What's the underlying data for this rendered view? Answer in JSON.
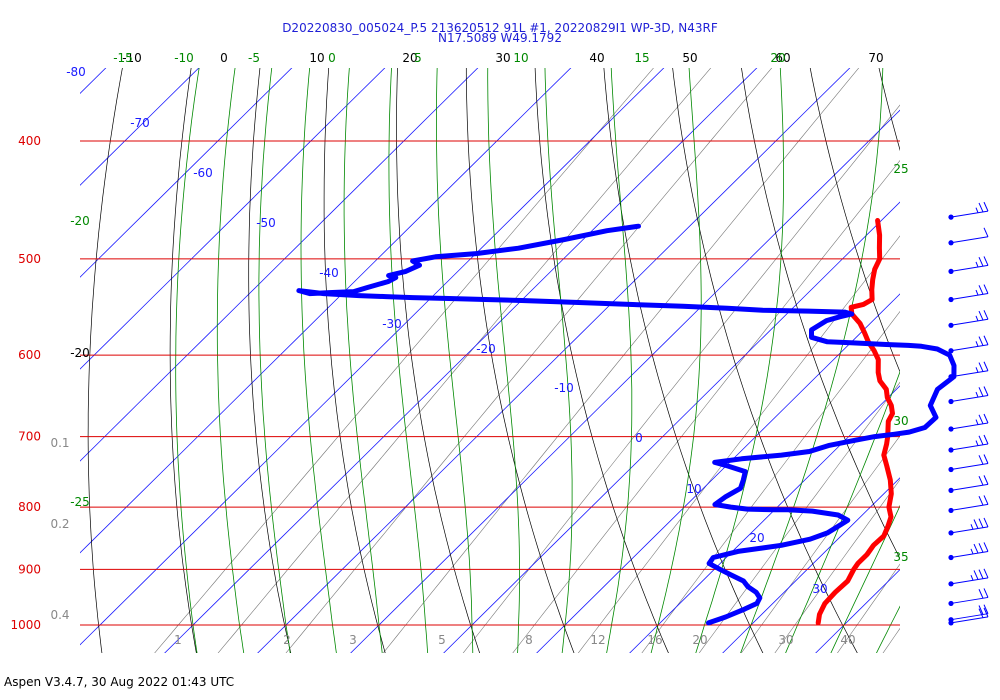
{
  "title_line1": "D20220830_005024_P.5 213620512 91L #1, 20220829I1 WP-3D, N43RF",
  "title_line2": "N17.5089 W49.1792",
  "footer": "Aspen V3.4.7, 30 Aug 2022  01:43 UTC",
  "colors": {
    "isobar": "#dd0000",
    "isotherm": "#1a1aff",
    "dry_adiabat": "#000000",
    "moist_adiabat": "#008800",
    "mixing_ratio": "#777777",
    "temperature": "#ff0000",
    "dewpoint": "#0000ff",
    "wind": "#0000ff"
  },
  "chart_data": {
    "type": "line",
    "chart_kind": "skew-T log-P diagram",
    "y_scale": "log",
    "ylim": [
      1000,
      330
    ],
    "pressure_labels": [
      {
        "p": 400,
        "text": "400"
      },
      {
        "p": 500,
        "text": "500"
      },
      {
        "p": 600,
        "text": "600"
      },
      {
        "p": 700,
        "text": "700"
      },
      {
        "p": 800,
        "text": "800"
      },
      {
        "p": 900,
        "text": "900"
      },
      {
        "p": 1000,
        "text": "1000"
      }
    ],
    "top_tick_labels": [
      {
        "text": "-10",
        "color": "#000000"
      },
      {
        "text": "0",
        "color": "#000000"
      },
      {
        "text": "10",
        "color": "#000000"
      },
      {
        "text": "20",
        "color": "#000000"
      },
      {
        "text": "30",
        "color": "#000000"
      },
      {
        "text": "40",
        "color": "#000000"
      },
      {
        "text": "50",
        "color": "#000000"
      },
      {
        "text": "60",
        "color": "#000000"
      },
      {
        "text": "70",
        "color": "#000000"
      },
      {
        "text": "-15",
        "color": "#008800"
      },
      {
        "text": "-10",
        "color": "#008800"
      },
      {
        "text": "-5",
        "color": "#008800"
      },
      {
        "text": "0",
        "color": "#008800"
      },
      {
        "text": "5",
        "color": "#008800"
      },
      {
        "text": "10",
        "color": "#008800"
      },
      {
        "text": "15",
        "color": "#008800"
      },
      {
        "text": "20",
        "color": "#008800"
      }
    ],
    "isotherm_labels": [
      "-80",
      "-70",
      "-60",
      "-50",
      "-40",
      "-30",
      "-20",
      "-10",
      "0",
      "10",
      "20",
      "30"
    ],
    "mixing_ratio_labels": [
      "1",
      "2",
      "3",
      "5",
      "8",
      "12",
      "16",
      "20",
      "30",
      "40"
    ],
    "left_moist_labels": [
      "-20",
      "-20",
      "-25"
    ],
    "left_small_labels": [
      "0.1",
      "0.2",
      "0.4"
    ],
    "right_moist_labels": [
      "25",
      "30",
      "35"
    ],
    "series": [
      {
        "name": "Temperature",
        "points": [
          [
            996,
            27.0
          ],
          [
            980,
            26.2
          ],
          [
            960,
            25.6
          ],
          [
            940,
            25.5
          ],
          [
            920,
            25.6
          ],
          [
            900,
            25.0
          ],
          [
            890,
            24.8
          ],
          [
            875,
            24.8
          ],
          [
            860,
            24.5
          ],
          [
            845,
            24.6
          ],
          [
            830,
            24.0
          ],
          [
            815,
            23.3
          ],
          [
            800,
            22.0
          ],
          [
            780,
            20.8
          ],
          [
            760,
            19.2
          ],
          [
            740,
            17.3
          ],
          [
            725,
            15.8
          ],
          [
            710,
            14.9
          ],
          [
            700,
            14.2
          ],
          [
            690,
            13.4
          ],
          [
            680,
            12.6
          ],
          [
            670,
            12.2
          ],
          [
            660,
            11.2
          ],
          [
            650,
            9.9
          ],
          [
            640,
            8.9
          ],
          [
            630,
            7.3
          ],
          [
            620,
            6.2
          ],
          [
            605,
            4.8
          ],
          [
            595,
            3.4
          ],
          [
            585,
            1.8
          ],
          [
            575,
            0.4
          ],
          [
            565,
            -1.1
          ],
          [
            555,
            -3.0
          ],
          [
            548,
            -3.8
          ],
          [
            545,
            -2.8
          ],
          [
            540,
            -2.4
          ],
          [
            530,
            -3.5
          ],
          [
            520,
            -4.5
          ],
          [
            510,
            -5.4
          ],
          [
            500,
            -6.0
          ],
          [
            490,
            -7.2
          ],
          [
            478,
            -8.6
          ],
          [
            465,
            -10.4
          ]
        ]
      },
      {
        "name": "Dewpoint",
        "points": [
          [
            996,
            15.2
          ],
          [
            985,
            16.4
          ],
          [
            970,
            17.6
          ],
          [
            960,
            18.3
          ],
          [
            950,
            18.0
          ],
          [
            940,
            17.0
          ],
          [
            930,
            15.5
          ],
          [
            920,
            14.4
          ],
          [
            910,
            12.5
          ],
          [
            900,
            10.6
          ],
          [
            890,
            8.8
          ],
          [
            880,
            8.6
          ],
          [
            870,
            10.6
          ],
          [
            865,
            12.6
          ],
          [
            860,
            14.6
          ],
          [
            850,
            17.0
          ],
          [
            840,
            18.2
          ],
          [
            830,
            18.6
          ],
          [
            820,
            19.0
          ],
          [
            812,
            17.4
          ],
          [
            806,
            14.2
          ],
          [
            804,
            11.4
          ],
          [
            804,
            10.0
          ],
          [
            803,
            7.0
          ],
          [
            800,
            5.0
          ],
          [
            796,
            3.0
          ],
          [
            785,
            3.3
          ],
          [
            772,
            4.0
          ],
          [
            760,
            3.4
          ],
          [
            748,
            2.7
          ],
          [
            740,
            0.2
          ],
          [
            735,
            -1.6
          ],
          [
            730,
            0.9
          ],
          [
            725,
            4.8
          ],
          [
            720,
            7.4
          ],
          [
            712,
            8.8
          ],
          [
            705,
            11.0
          ],
          [
            700,
            12.8
          ],
          [
            697,
            14.6
          ],
          [
            694,
            16.0
          ],
          [
            688,
            17.2
          ],
          [
            675,
            17.3
          ],
          [
            660,
            15.4
          ],
          [
            640,
            14.4
          ],
          [
            625,
            14.8
          ],
          [
            612,
            13.6
          ],
          [
            600,
            12.0
          ],
          [
            593,
            10.0
          ],
          [
            590,
            8.0
          ],
          [
            589,
            6.5
          ],
          [
            588,
            4.0
          ],
          [
            587,
            2.0
          ],
          [
            586,
            0.0
          ],
          [
            585,
            -2.6
          ],
          [
            580,
            -4.8
          ],
          [
            572,
            -5.6
          ],
          [
            562,
            -5.0
          ],
          [
            558,
            -4.0
          ],
          [
            555,
            -3.0
          ],
          [
            553,
            -4.0
          ],
          [
            552,
            -8.0
          ],
          [
            551,
            -13.0
          ],
          [
            549,
            -17.0
          ],
          [
            547,
            -22.0
          ],
          [
            545,
            -28.0
          ],
          [
            543,
            -34.0
          ],
          [
            541,
            -40.0
          ],
          [
            540,
            -44.0
          ],
          [
            539,
            -48.0
          ],
          [
            538,
            -52.0
          ],
          [
            537,
            -55.0
          ],
          [
            536,
            -58.0
          ],
          [
            535,
            -60.0
          ],
          [
            534,
            -62.0
          ],
          [
            533,
            -63.0
          ],
          [
            532,
            -64.0
          ],
          [
            531,
            -65.0
          ],
          [
            534,
            -63.5
          ],
          [
            533,
            -61.5
          ],
          [
            532,
            -59.0
          ],
          [
            528,
            -58.0
          ],
          [
            522,
            -56.4
          ],
          [
            518,
            -56.0
          ],
          [
            516,
            -57.0
          ],
          [
            512,
            -55.6
          ],
          [
            506,
            -54.8
          ],
          [
            502,
            -56.0
          ],
          [
            498,
            -54.0
          ],
          [
            495,
            -50.0
          ],
          [
            490,
            -46.0
          ],
          [
            482,
            -42.0
          ],
          [
            474,
            -38.4
          ],
          [
            470,
            -35.5
          ]
        ]
      }
    ],
    "wind_barbs": [
      {
        "p": 996,
        "speed": 20
      },
      {
        "p": 990,
        "speed": 20
      },
      {
        "p": 960,
        "speed": 20
      },
      {
        "p": 925,
        "speed": 25
      },
      {
        "p": 880,
        "speed": 25
      },
      {
        "p": 840,
        "speed": 25
      },
      {
        "p": 805,
        "speed": 20
      },
      {
        "p": 775,
        "speed": 20
      },
      {
        "p": 745,
        "speed": 20
      },
      {
        "p": 718,
        "speed": 15
      },
      {
        "p": 690,
        "speed": 15
      },
      {
        "p": 655,
        "speed": 15
      },
      {
        "p": 625,
        "speed": 15
      },
      {
        "p": 595,
        "speed": 15
      },
      {
        "p": 567,
        "speed": 15
      },
      {
        "p": 540,
        "speed": 15
      },
      {
        "p": 512,
        "speed": 15
      },
      {
        "p": 485,
        "speed": 10
      },
      {
        "p": 462,
        "speed": 15
      }
    ]
  }
}
